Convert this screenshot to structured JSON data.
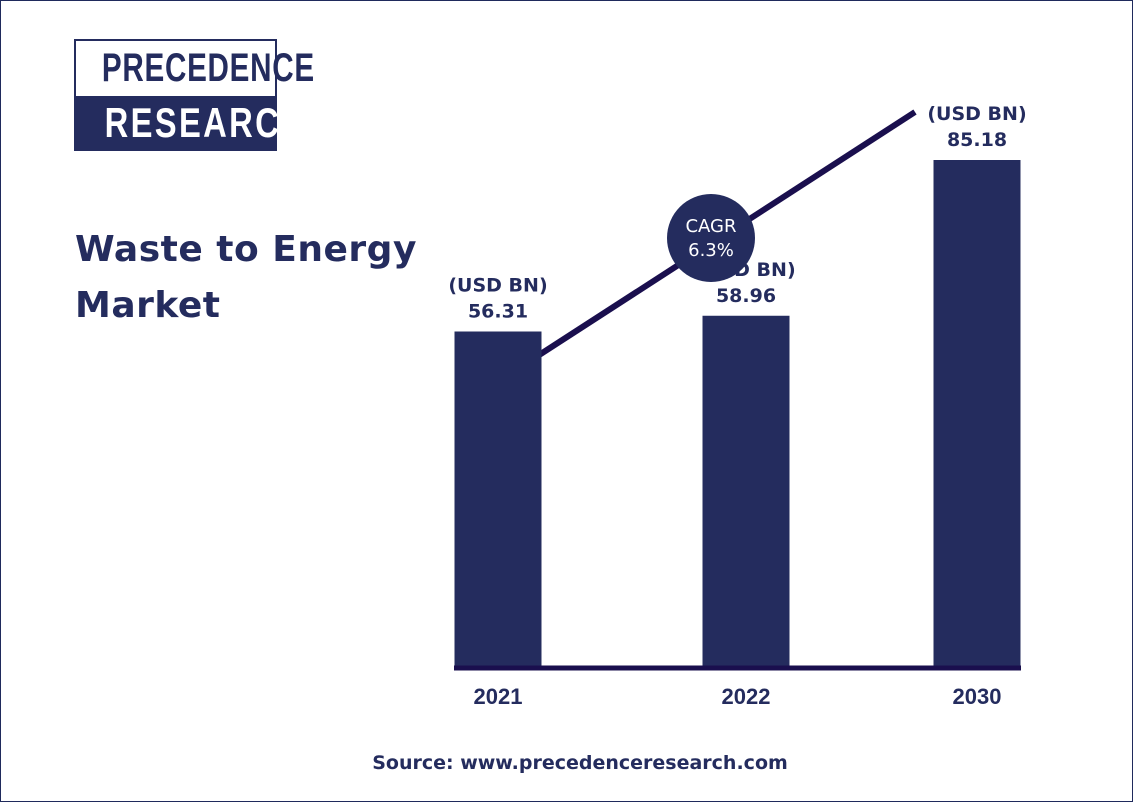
{
  "logo": {
    "line1": "PRECEDENCE",
    "line2": "RESEARCH"
  },
  "title_line1": "Waste to Energy",
  "title_line2": "Market",
  "cagr": {
    "label": "CAGR",
    "value": "6.3%"
  },
  "source": "Source: www.precedenceresearch.com",
  "colors": {
    "bar": "#242c5e",
    "axis": "#1a0f4e",
    "text": "#242c5e",
    "trend": "#1a0f4e"
  },
  "chart_data": {
    "type": "bar",
    "categories": [
      "2021",
      "2022",
      "2030"
    ],
    "values": [
      56.31,
      58.96,
      85.18
    ],
    "unit_label": "(USD BN)",
    "value_labels": [
      "56.31",
      "58.96",
      "85.18"
    ],
    "title": "Waste to Energy Market",
    "xlabel": "",
    "ylabel": "",
    "grid": false,
    "annotations": [
      {
        "text": "CAGR 6.3%"
      }
    ]
  }
}
